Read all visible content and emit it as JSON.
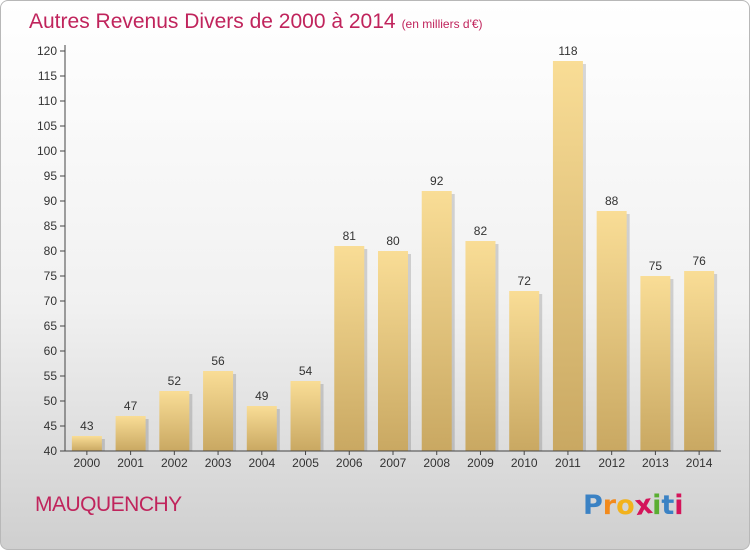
{
  "title": "Autres Revenus Divers de 2000 à 2014",
  "unit": "(en milliers d'€)",
  "commune": "MAUQUENCHY",
  "logo": {
    "letters": [
      "P",
      "r",
      "o",
      "x",
      "i",
      "t",
      "i"
    ],
    "colors": [
      "#3b82c4",
      "#f28a1c",
      "#f2b21c",
      "#d4145a",
      "#5aae32",
      "#3b82c4",
      "#d4145a"
    ]
  },
  "colors": {
    "bar_top": "#f9dd96",
    "bar_bottom": "#c9a862",
    "title": "#c0245c"
  },
  "chart_data": {
    "type": "bar",
    "categories": [
      "2000",
      "2001",
      "2002",
      "2003",
      "2004",
      "2005",
      "2006",
      "2007",
      "2008",
      "2009",
      "2010",
      "2011",
      "2012",
      "2013",
      "2014"
    ],
    "values": [
      43,
      47,
      52,
      56,
      49,
      54,
      81,
      80,
      92,
      82,
      72,
      118,
      88,
      75,
      76
    ],
    "ylim": [
      40,
      120
    ],
    "yticks": [
      40,
      45,
      50,
      55,
      60,
      65,
      70,
      75,
      80,
      85,
      90,
      95,
      100,
      105,
      110,
      115,
      120
    ],
    "grid": false,
    "legend": "none"
  }
}
